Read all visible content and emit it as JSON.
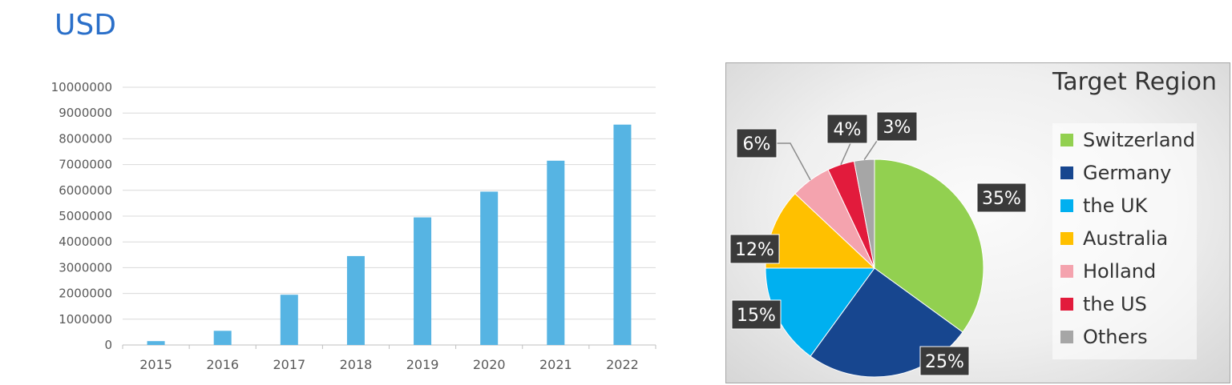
{
  "page": {
    "title": "USD"
  },
  "chart_data": [
    {
      "type": "bar",
      "categories": [
        "2015",
        "2016",
        "2017",
        "2018",
        "2019",
        "2020",
        "2021",
        "2022"
      ],
      "values": [
        150000,
        550000,
        1950000,
        3450000,
        4950000,
        5950000,
        7150000,
        8550000
      ],
      "ylim": [
        0,
        10000000
      ],
      "yticks": [
        "0",
        "1000000",
        "2000000",
        "3000000",
        "4000000",
        "5000000",
        "6000000",
        "7000000",
        "8000000",
        "9000000",
        "10000000"
      ],
      "grid": true,
      "color": "#56b4e3"
    },
    {
      "type": "pie",
      "title": "Target Region",
      "legend_position": "right",
      "slices": [
        {
          "name": "Switzerland",
          "value": 35,
          "label": "35%",
          "color": "#92d050"
        },
        {
          "name": "Germany",
          "value": 25,
          "label": "25%",
          "color": "#17468f"
        },
        {
          "name": "the UK",
          "value": 15,
          "label": "15%",
          "color": "#00b0f0"
        },
        {
          "name": "Australia",
          "value": 12,
          "label": "12%",
          "color": "#ffc000"
        },
        {
          "name": "Holland",
          "value": 6,
          "label": "6%",
          "color": "#f4a3ae"
        },
        {
          "name": "the US",
          "value": 4,
          "label": "4%",
          "color": "#e21b3c"
        },
        {
          "name": "Others",
          "value": 3,
          "label": "3%",
          "color": "#a6a6a6"
        }
      ]
    }
  ]
}
